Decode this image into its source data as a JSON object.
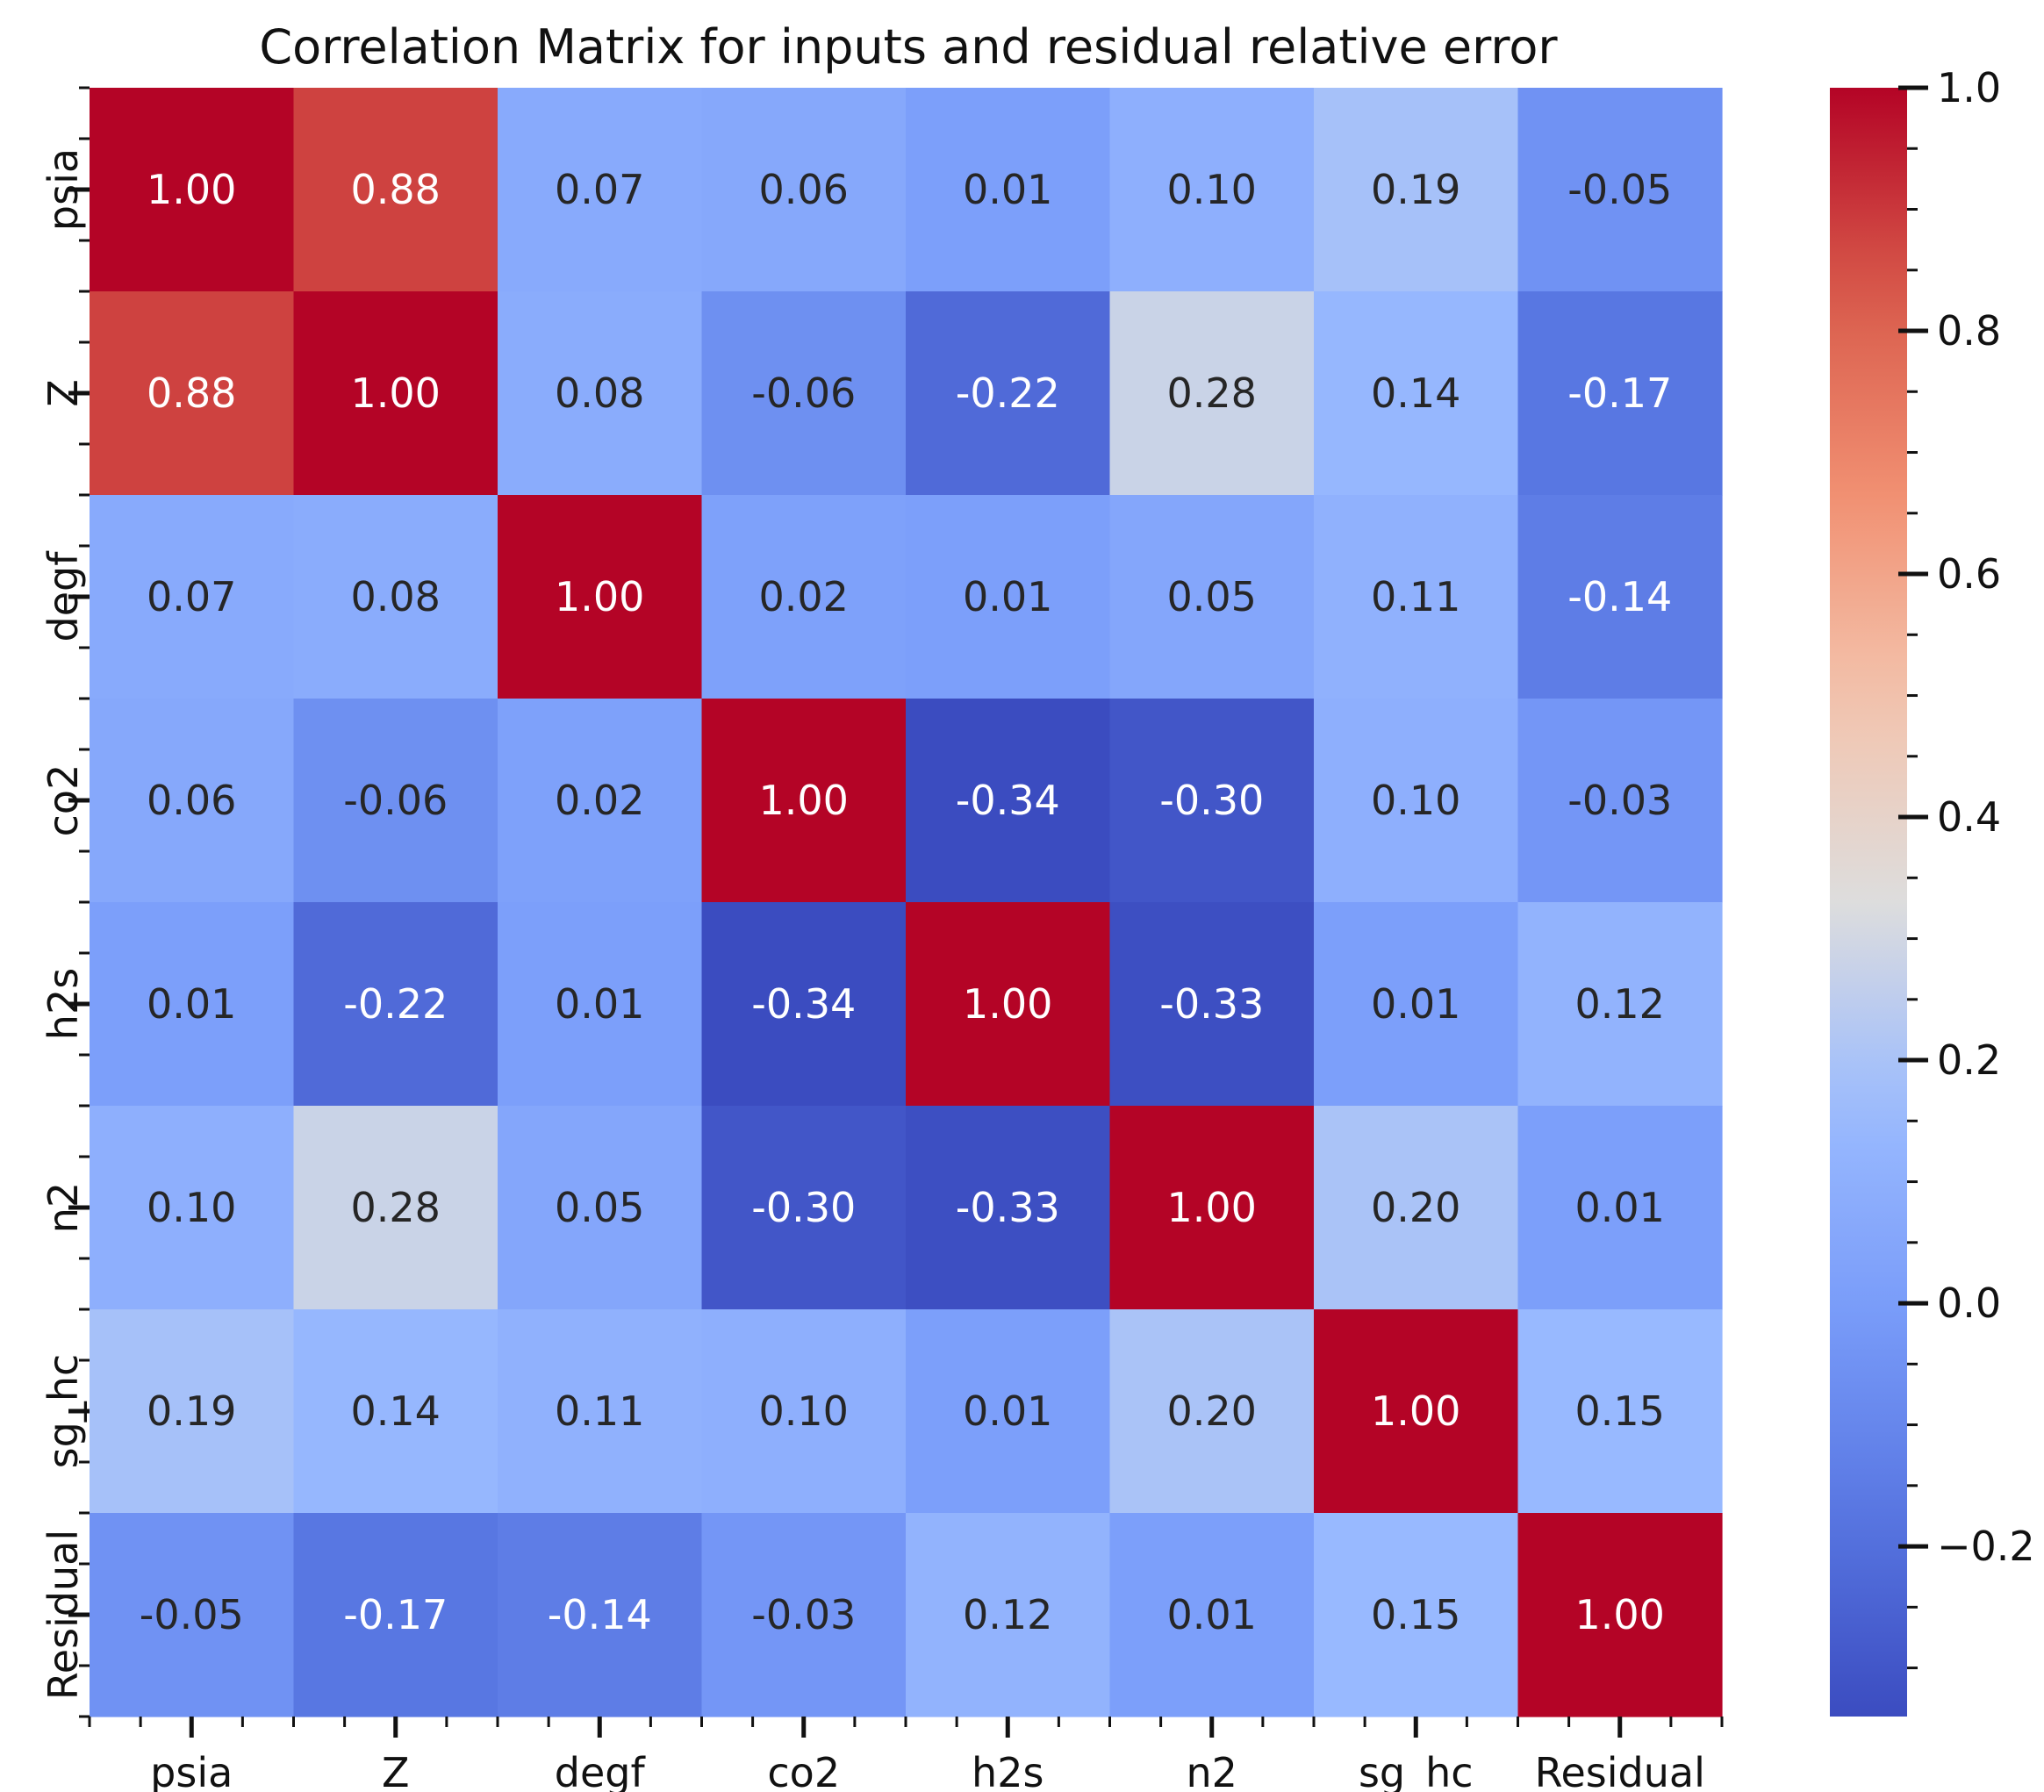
{
  "chart_data": {
    "type": "heatmap",
    "title": "Correlation Matrix for inputs and residual relative error",
    "xlabel": "",
    "ylabel": "",
    "x_categories": [
      "psia",
      "Z",
      "degf",
      "co2",
      "h2s",
      "n2",
      "sg_hc",
      "Residual"
    ],
    "y_categories": [
      "psia",
      "Z",
      "degf",
      "co2",
      "h2s",
      "n2",
      "sg_hc",
      "Residual"
    ],
    "values": [
      [
        1.0,
        0.88,
        0.07,
        0.06,
        0.01,
        0.1,
        0.19,
        -0.05
      ],
      [
        0.88,
        1.0,
        0.08,
        -0.06,
        -0.22,
        0.28,
        0.14,
        -0.17
      ],
      [
        0.07,
        0.08,
        1.0,
        0.02,
        0.01,
        0.05,
        0.11,
        -0.14
      ],
      [
        0.06,
        -0.06,
        0.02,
        1.0,
        -0.34,
        -0.3,
        0.1,
        -0.03
      ],
      [
        0.01,
        -0.22,
        0.01,
        -0.34,
        1.0,
        -0.33,
        0.01,
        0.12
      ],
      [
        0.1,
        0.28,
        0.05,
        -0.3,
        -0.33,
        1.0,
        0.2,
        0.01
      ],
      [
        0.19,
        0.14,
        0.11,
        0.1,
        0.01,
        0.2,
        1.0,
        0.15
      ],
      [
        -0.05,
        -0.17,
        -0.14,
        -0.03,
        0.12,
        0.01,
        0.15,
        1.0
      ]
    ],
    "value_format": "2 decimals",
    "colormap": "coolwarm",
    "colorbar": {
      "range": [
        -0.34,
        1.0
      ],
      "ticks": [
        -0.2,
        0.0,
        0.2,
        0.4,
        0.6,
        0.8,
        1.0
      ],
      "tick_labels": [
        "−0.2",
        "0.0",
        "0.2",
        "0.4",
        "0.6",
        "0.8",
        "1.0"
      ]
    },
    "grid": false,
    "legend": "colorbar-right"
  }
}
